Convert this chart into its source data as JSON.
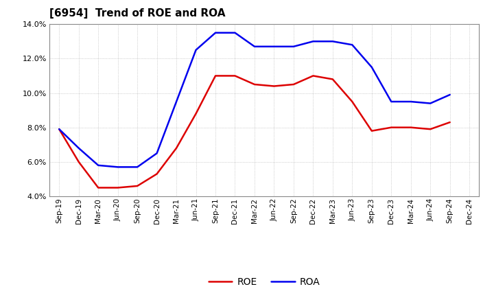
{
  "title": "[6954]  Trend of ROE and ROA",
  "x_labels": [
    "Sep-19",
    "Dec-19",
    "Mar-20",
    "Jun-20",
    "Sep-20",
    "Dec-20",
    "Mar-21",
    "Jun-21",
    "Sep-21",
    "Dec-21",
    "Mar-22",
    "Jun-22",
    "Sep-22",
    "Dec-22",
    "Mar-23",
    "Jun-23",
    "Sep-23",
    "Dec-23",
    "Mar-24",
    "Jun-24",
    "Sep-24",
    "Dec-24"
  ],
  "roe": [
    7.9,
    6.0,
    4.5,
    4.5,
    4.6,
    5.3,
    6.8,
    8.8,
    11.0,
    11.0,
    10.5,
    10.4,
    10.5,
    11.0,
    10.8,
    9.5,
    7.8,
    8.0,
    8.0,
    7.9,
    8.3,
    null
  ],
  "roa": [
    7.9,
    6.8,
    5.8,
    5.7,
    5.7,
    6.5,
    9.5,
    12.5,
    13.5,
    13.5,
    12.7,
    12.7,
    12.7,
    13.0,
    13.0,
    12.8,
    11.5,
    9.5,
    9.5,
    9.4,
    9.9,
    null
  ],
  "ylim": [
    4.0,
    14.0
  ],
  "yticks": [
    4.0,
    6.0,
    8.0,
    10.0,
    12.0,
    14.0
  ],
  "roe_color": "#dd0000",
  "roa_color": "#0000ee",
  "background_color": "#ffffff",
  "grid_color": "#999999",
  "linewidth": 1.8,
  "figwidth": 7.2,
  "figheight": 4.4,
  "dpi": 100
}
